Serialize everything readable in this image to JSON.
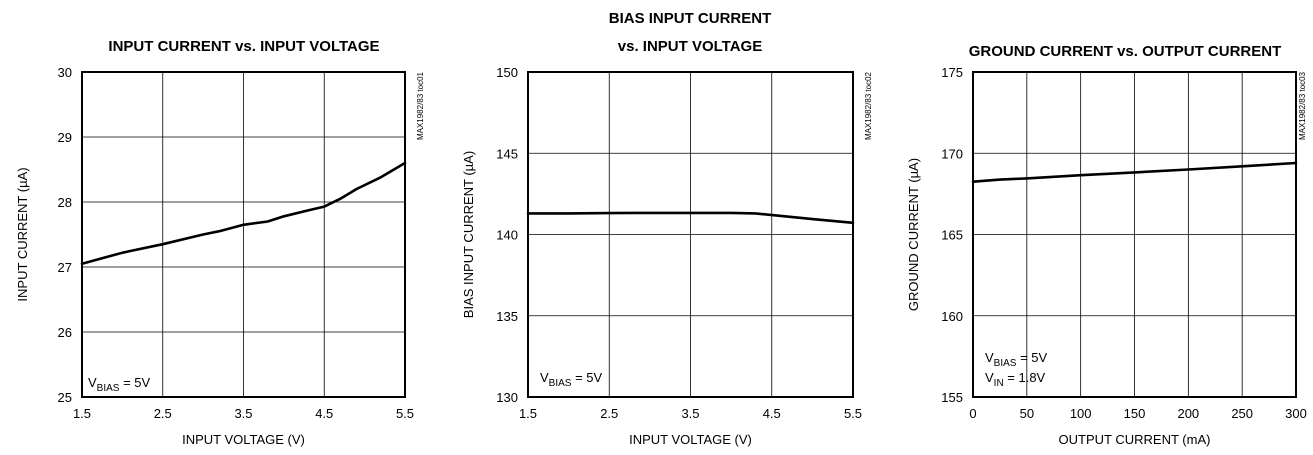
{
  "chart_data": [
    {
      "type": "line",
      "title": [
        "INPUT CURRENT vs. INPUT VOLTAGE"
      ],
      "xlabel": "INPUT VOLTAGE (V)",
      "ylabel": "INPUT CURRENT (µA)",
      "xlim": [
        1.5,
        5.5
      ],
      "ylim": [
        25,
        30
      ],
      "xticks": [
        1.5,
        2.5,
        3.5,
        4.5,
        5.5
      ],
      "xtick_labels": [
        "1.5",
        "2.5",
        "3.5",
        "4.5",
        "5.5"
      ],
      "yticks": [
        25,
        26,
        27,
        28,
        29,
        30
      ],
      "ytick_labels": [
        "25",
        "26",
        "27",
        "28",
        "29",
        "30"
      ],
      "grid": true,
      "side_id": "MAX1982/83 toc01",
      "annotations": [
        {
          "parts": [
            {
              "t": "V"
            },
            {
              "t": "BIAS",
              "sub": true
            },
            {
              "t": " = 5V"
            }
          ]
        }
      ],
      "series": [
        {
          "x": [
            1.5,
            2.0,
            2.5,
            3.0,
            3.2,
            3.5,
            3.8,
            4.0,
            4.3,
            4.5,
            4.7,
            4.9,
            5.2,
            5.5
          ],
          "values": [
            27.05,
            27.22,
            27.35,
            27.5,
            27.55,
            27.65,
            27.7,
            27.78,
            27.87,
            27.93,
            28.05,
            28.2,
            28.38,
            28.6
          ]
        }
      ]
    },
    {
      "type": "line",
      "title": [
        "BIAS INPUT CURRENT",
        "vs. INPUT VOLTAGE"
      ],
      "xlabel": "INPUT VOLTAGE (V)",
      "ylabel": "BIAS INPUT CURRENT (µA)",
      "xlim": [
        1.5,
        5.5
      ],
      "ylim": [
        130,
        150
      ],
      "xticks": [
        1.5,
        2.5,
        3.5,
        4.5,
        5.5
      ],
      "xtick_labels": [
        "1.5",
        "2.5",
        "3.5",
        "4.5",
        "5.5"
      ],
      "yticks": [
        130,
        135,
        140,
        145,
        150
      ],
      "ytick_labels": [
        "130",
        "135",
        "140",
        "145",
        "150"
      ],
      "grid": true,
      "side_id": "MAX1982/83 toc02",
      "annotations": [
        {
          "parts": [
            {
              "t": "V"
            },
            {
              "t": "BIAS",
              "sub": true
            },
            {
              "t": " = 5V"
            }
          ]
        }
      ],
      "series": [
        {
          "x": [
            1.5,
            2.0,
            2.5,
            3.0,
            3.5,
            4.0,
            4.3,
            4.6,
            5.0,
            5.5
          ],
          "values": [
            141.3,
            141.3,
            141.32,
            141.33,
            141.33,
            141.33,
            141.3,
            141.15,
            140.95,
            140.72
          ]
        }
      ]
    },
    {
      "type": "line",
      "title": [
        "GROUND CURRENT vs. OUTPUT CURRENT"
      ],
      "xlabel": "OUTPUT CURRENT (mA)",
      "ylabel": "GROUND CURRENT (µA)",
      "xlim": [
        0,
        300
      ],
      "ylim": [
        155,
        175
      ],
      "xticks": [
        0,
        50,
        100,
        150,
        200,
        250,
        300
      ],
      "xtick_labels": [
        "0",
        "50",
        "100",
        "150",
        "200",
        "250",
        "300"
      ],
      "yticks": [
        155,
        160,
        165,
        170,
        175
      ],
      "ytick_labels": [
        "155",
        "160",
        "165",
        "170",
        "175"
      ],
      "grid": true,
      "side_id": "MAX1982/83 toc03",
      "annotations": [
        {
          "parts": [
            {
              "t": "V"
            },
            {
              "t": "BIAS",
              "sub": true
            },
            {
              "t": " = 5V"
            }
          ]
        },
        {
          "parts": [
            {
              "t": "V"
            },
            {
              "t": "IN",
              "sub": true
            },
            {
              "t": " = 1.8V"
            }
          ]
        }
      ],
      "series": [
        {
          "x": [
            0,
            25,
            50,
            100,
            150,
            200,
            250,
            300
          ],
          "values": [
            168.25,
            168.38,
            168.45,
            168.65,
            168.82,
            169.0,
            169.2,
            169.4
          ]
        }
      ]
    }
  ]
}
